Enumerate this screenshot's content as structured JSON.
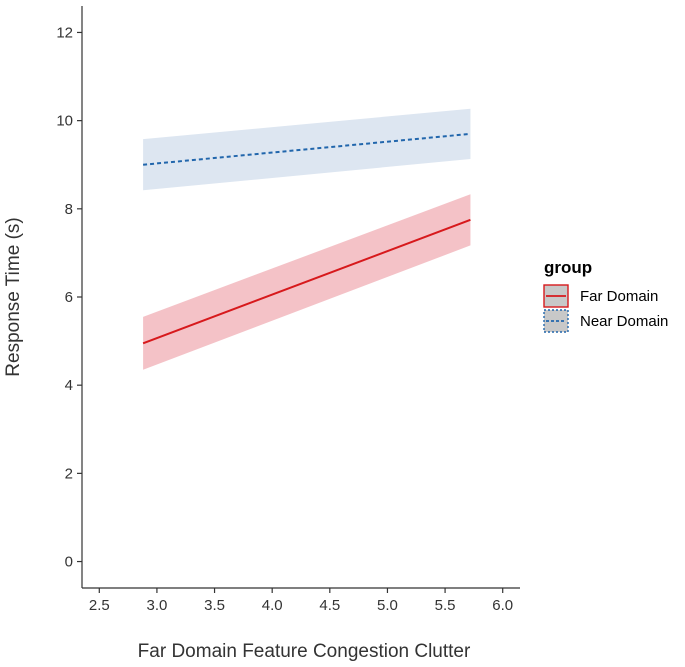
{
  "chart_data": {
    "type": "line",
    "xlabel": "Far Domain Feature Congestion Clutter",
    "ylabel": "Response Time (s)",
    "xlim": [
      2.35,
      6.15
    ],
    "ylim": [
      -0.6,
      12.6
    ],
    "xticks": [
      2.5,
      3.0,
      3.5,
      4.0,
      4.5,
      5.0,
      5.5,
      6.0
    ],
    "xtick_labels": [
      "2.5",
      "3.0",
      "3.5",
      "4.0",
      "4.5",
      "5.0",
      "5.5",
      "6.0"
    ],
    "yticks": [
      0,
      2,
      4,
      6,
      8,
      10,
      12
    ],
    "ytick_labels": [
      "0",
      "2",
      "4",
      "6",
      "8",
      "10",
      "12"
    ],
    "grid": false,
    "legend": {
      "title": "group",
      "position": "right"
    },
    "series": [
      {
        "name": "Far Domain",
        "line_style": "solid",
        "color": "#d7191c",
        "band_color": "#f4c2c7",
        "x": [
          2.88,
          5.72
        ],
        "y": [
          4.95,
          7.75
        ],
        "ci_lower": [
          4.35,
          7.17
        ],
        "ci_upper": [
          5.55,
          8.33
        ]
      },
      {
        "name": "Near Domain",
        "line_style": "dashed",
        "color": "#2166ac",
        "band_color": "#dde6f1",
        "x": [
          2.88,
          5.72
        ],
        "y": [
          9.0,
          9.7
        ],
        "ci_lower": [
          8.42,
          9.13
        ],
        "ci_upper": [
          9.58,
          10.27
        ]
      }
    ]
  }
}
